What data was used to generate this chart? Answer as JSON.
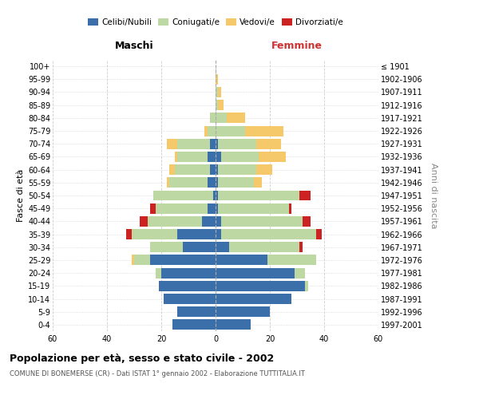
{
  "age_groups": [
    "0-4",
    "5-9",
    "10-14",
    "15-19",
    "20-24",
    "25-29",
    "30-34",
    "35-39",
    "40-44",
    "45-49",
    "50-54",
    "55-59",
    "60-64",
    "65-69",
    "70-74",
    "75-79",
    "80-84",
    "85-89",
    "90-94",
    "95-99",
    "100+"
  ],
  "birth_years": [
    "1997-2001",
    "1992-1996",
    "1987-1991",
    "1982-1986",
    "1977-1981",
    "1972-1976",
    "1967-1971",
    "1962-1966",
    "1957-1961",
    "1952-1956",
    "1947-1951",
    "1942-1946",
    "1937-1941",
    "1932-1936",
    "1927-1931",
    "1922-1926",
    "1917-1921",
    "1912-1916",
    "1907-1911",
    "1902-1906",
    "≤ 1901"
  ],
  "maschi": {
    "celibi": [
      16,
      14,
      19,
      21,
      20,
      24,
      12,
      14,
      5,
      3,
      1,
      3,
      2,
      3,
      2,
      0,
      0,
      0,
      0,
      0,
      0
    ],
    "coniugati": [
      0,
      0,
      0,
      0,
      2,
      6,
      12,
      17,
      20,
      19,
      22,
      14,
      13,
      11,
      12,
      3,
      2,
      0,
      0,
      0,
      0
    ],
    "vedovi": [
      0,
      0,
      0,
      0,
      0,
      1,
      0,
      0,
      0,
      0,
      0,
      1,
      2,
      1,
      4,
      1,
      0,
      0,
      0,
      0,
      0
    ],
    "divorziati": [
      0,
      0,
      0,
      0,
      0,
      0,
      0,
      2,
      3,
      2,
      0,
      0,
      0,
      0,
      0,
      0,
      0,
      0,
      0,
      0,
      0
    ]
  },
  "femmine": {
    "nubili": [
      13,
      20,
      28,
      33,
      29,
      19,
      5,
      2,
      2,
      1,
      1,
      1,
      1,
      2,
      1,
      0,
      0,
      0,
      0,
      0,
      0
    ],
    "coniugate": [
      0,
      0,
      0,
      1,
      4,
      18,
      26,
      35,
      30,
      26,
      30,
      13,
      14,
      14,
      14,
      11,
      4,
      1,
      1,
      0,
      0
    ],
    "vedove": [
      0,
      0,
      0,
      0,
      0,
      0,
      0,
      0,
      0,
      0,
      2,
      3,
      6,
      10,
      9,
      14,
      7,
      2,
      1,
      1,
      0
    ],
    "divorziate": [
      0,
      0,
      0,
      0,
      0,
      0,
      1,
      2,
      3,
      1,
      4,
      0,
      0,
      0,
      0,
      0,
      0,
      0,
      0,
      0,
      0
    ]
  },
  "colors": {
    "celibi": "#3b6faa",
    "coniugati": "#bdd8a3",
    "vedovi": "#f5c96a",
    "divorziati": "#cc2222"
  },
  "xlim": 60,
  "title": "Popolazione per età, sesso e stato civile - 2002",
  "subtitle": "COMUNE DI BONEMERSE (CR) - Dati ISTAT 1° gennaio 2002 - Elaborazione TUTTITALIA.IT",
  "xlabel_left": "Maschi",
  "xlabel_right": "Femmine",
  "ylabel_left": "Fasce di età",
  "ylabel_right": "Anni di nascita",
  "legend": [
    "Celibi/Nubili",
    "Coniugati/e",
    "Vedovi/e",
    "Divorziati/e"
  ]
}
